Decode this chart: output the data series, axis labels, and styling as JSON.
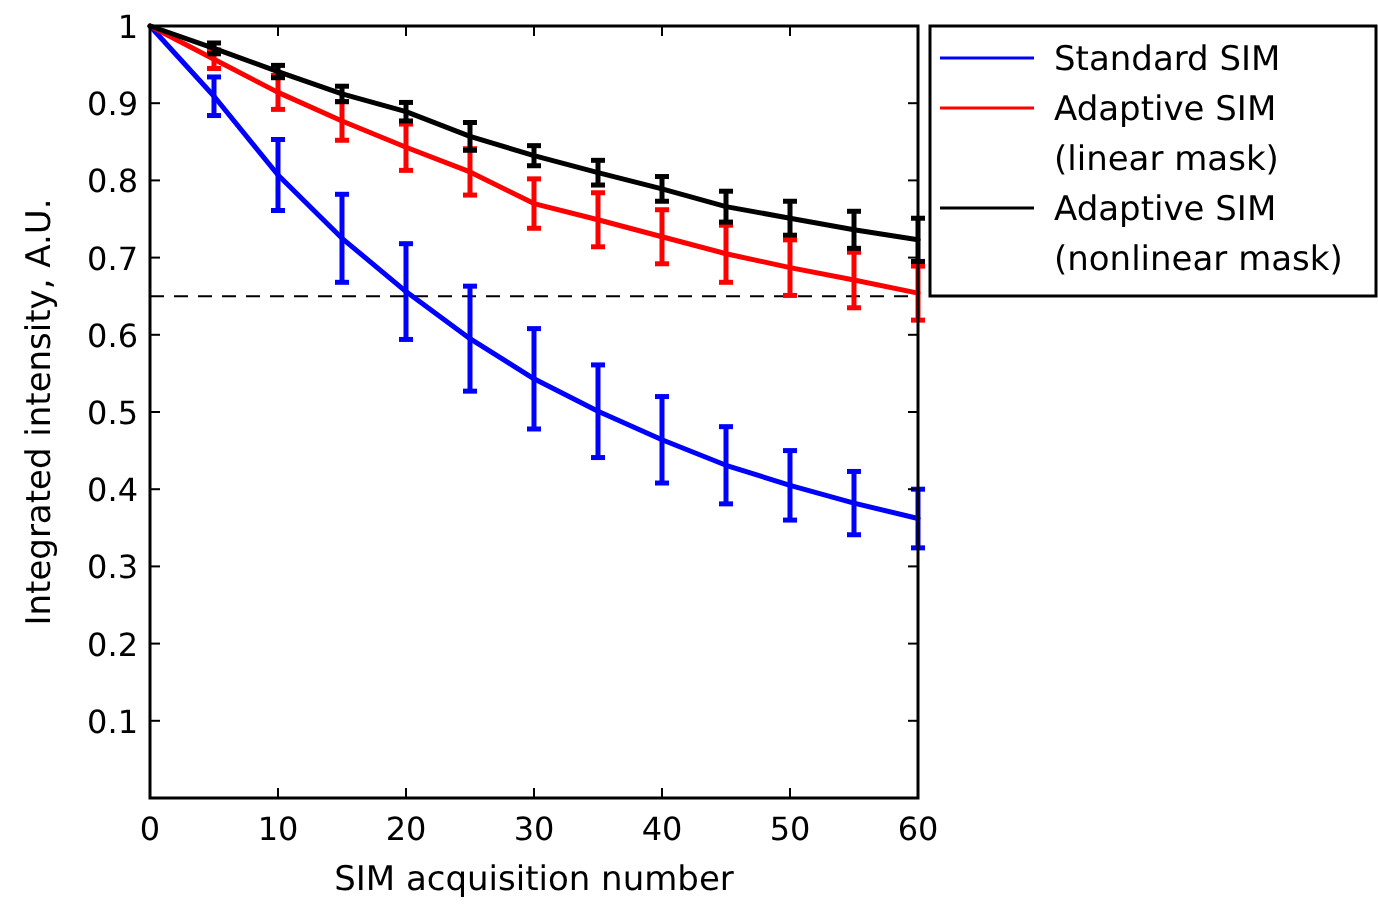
{
  "chart_data": {
    "type": "line",
    "xlabel": "SIM acquisition number",
    "ylabel": "Integrated intensity, A.U.",
    "x": [
      0,
      5,
      10,
      15,
      20,
      25,
      30,
      35,
      40,
      45,
      50,
      55,
      60
    ],
    "series": [
      {
        "name": "Standard SIM",
        "color": "#0000ff",
        "values": [
          1,
          0.909,
          0.807,
          0.725,
          0.656,
          0.595,
          0.543,
          0.501,
          0.464,
          0.431,
          0.405,
          0.382,
          0.362
        ],
        "errors": [
          null,
          0.025,
          0.046,
          0.057,
          0.062,
          0.068,
          0.065,
          0.06,
          0.056,
          0.05,
          0.045,
          0.041,
          0.038
        ]
      },
      {
        "name": "Adaptive SIM (linear mask)",
        "color": "#ff0000",
        "values": [
          1,
          0.957,
          0.914,
          0.877,
          0.843,
          0.811,
          0.77,
          0.749,
          0.727,
          0.705,
          0.687,
          0.671,
          0.654
        ],
        "errors": [
          null,
          0.012,
          0.022,
          0.025,
          0.03,
          0.03,
          0.032,
          0.035,
          0.035,
          0.037,
          0.036,
          0.036,
          0.035
        ]
      },
      {
        "name": "Adaptive SIM (nonlinear mask)",
        "color": "#000000",
        "values": [
          1,
          0.971,
          0.941,
          0.912,
          0.889,
          0.857,
          0.832,
          0.81,
          0.789,
          0.766,
          0.751,
          0.736,
          0.723
        ],
        "errors": [
          null,
          0.007,
          0.008,
          0.01,
          0.012,
          0.018,
          0.013,
          0.016,
          0.016,
          0.02,
          0.022,
          0.024,
          0.028
        ]
      }
    ],
    "xlim": [
      0,
      60
    ],
    "xticks": [
      0,
      10,
      20,
      30,
      40,
      50,
      60
    ],
    "ylim": [
      0,
      1
    ],
    "yticks": [
      0.1,
      0.2,
      0.3,
      0.4,
      0.5,
      0.6,
      0.7,
      0.8,
      0.9,
      1
    ],
    "ref_lines": [
      {
        "axis": "y",
        "value": 0.65,
        "color": "#000000",
        "line_style": "dashed"
      }
    ],
    "grid": false,
    "legend": "top right",
    "marker": "none",
    "line_style": "solid"
  }
}
